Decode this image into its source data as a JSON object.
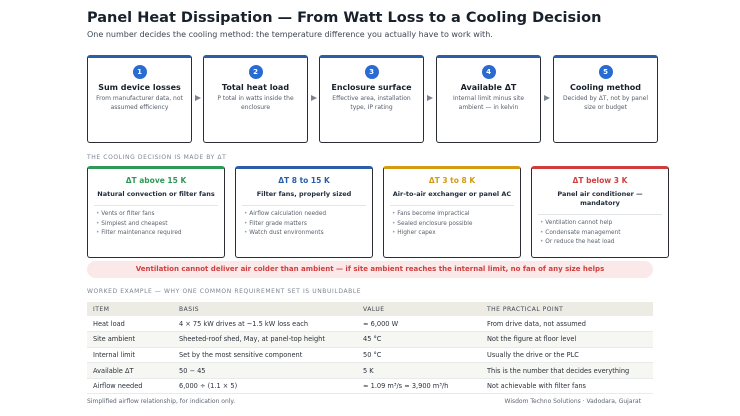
{
  "title": "Panel Heat Dissipation — From Watt Loss to a Cooling Decision",
  "subtitle": "One number decides the cooling method: the temperature difference you actually have to work with.",
  "colors": {
    "step_accent": "#2a5fa8",
    "green": "#2e9a55",
    "blue": "#2a5fa8",
    "amber": "#d39a12",
    "red": "#cf3e3e"
  },
  "steps": [
    {
      "num": "1",
      "title": "Sum device losses",
      "desc": "From manufacturer data, not assumed efficiency"
    },
    {
      "num": "2",
      "title": "Total heat load",
      "desc": "P total in watts inside the enclosure"
    },
    {
      "num": "3",
      "title": "Enclosure surface",
      "desc": "Effective area, installation type, IP rating"
    },
    {
      "num": "4",
      "title": "Available ΔT",
      "desc": "Internal limit minus site ambient — in kelvin"
    },
    {
      "num": "5",
      "title": "Cooling method",
      "desc": "Decided by ΔT, not by panel size or budget"
    }
  ],
  "decision_label": "THE COOLING DECISION IS MADE BY ΔT",
  "cards": [
    {
      "head": "ΔT above 15 K",
      "sub": "Natural convection or filter fans",
      "items": [
        "Vents or filter fans",
        "Simplest and cheapest",
        "Filter maintenance required"
      ]
    },
    {
      "head": "ΔT 8 to 15 K",
      "sub": "Filter fans, properly sized",
      "items": [
        "Airflow calculation needed",
        "Filter grade matters",
        "Watch dust environments"
      ]
    },
    {
      "head": "ΔT 3 to 8 K",
      "sub": "Air-to-air exchanger or panel AC",
      "items": [
        "Fans become impractical",
        "Sealed enclosure possible",
        "Higher capex"
      ]
    },
    {
      "head": "ΔT below 3 K",
      "sub": "Panel air conditioner — mandatory",
      "items": [
        "Ventilation cannot help",
        "Condensate management",
        "Or reduce the heat load"
      ]
    }
  ],
  "warning": "Ventilation cannot deliver air colder than ambient — if site ambient reaches the internal limit, no fan of any size helps",
  "example_label": "WORKED EXAMPLE — WHY ONE COMMON REQUIREMENT SET IS UNBUILDABLE",
  "table": {
    "headers": [
      "ITEM",
      "BASIS",
      "VALUE",
      "THE PRACTICAL POINT"
    ],
    "rows": [
      [
        "Heat load",
        "4 × 75 kW drives at ~1.5 kW loss each",
        "≈ 6,000 W",
        "From drive data, not assumed"
      ],
      [
        "Site ambient",
        "Sheeted-roof shed, May, at panel-top height",
        "45 °C",
        "Not the figure at floor level"
      ],
      [
        "Internal limit",
        "Set by the most sensitive component",
        "50 °C",
        "Usually the drive or the PLC"
      ],
      [
        "Available ΔT",
        "50 − 45",
        "5 K",
        "This is the number that decides everything"
      ],
      [
        "Airflow needed",
        "6,000 ÷ (1.1 × 5)",
        "≈ 1.09 m³/s ≈ 3,900 m³/h",
        "Not achievable with filter fans"
      ]
    ]
  },
  "footer_left": "Simplified airflow relationship, for indication only.",
  "footer_right": "Wisdom Techno Solutions · Vadodara, Gujarat"
}
